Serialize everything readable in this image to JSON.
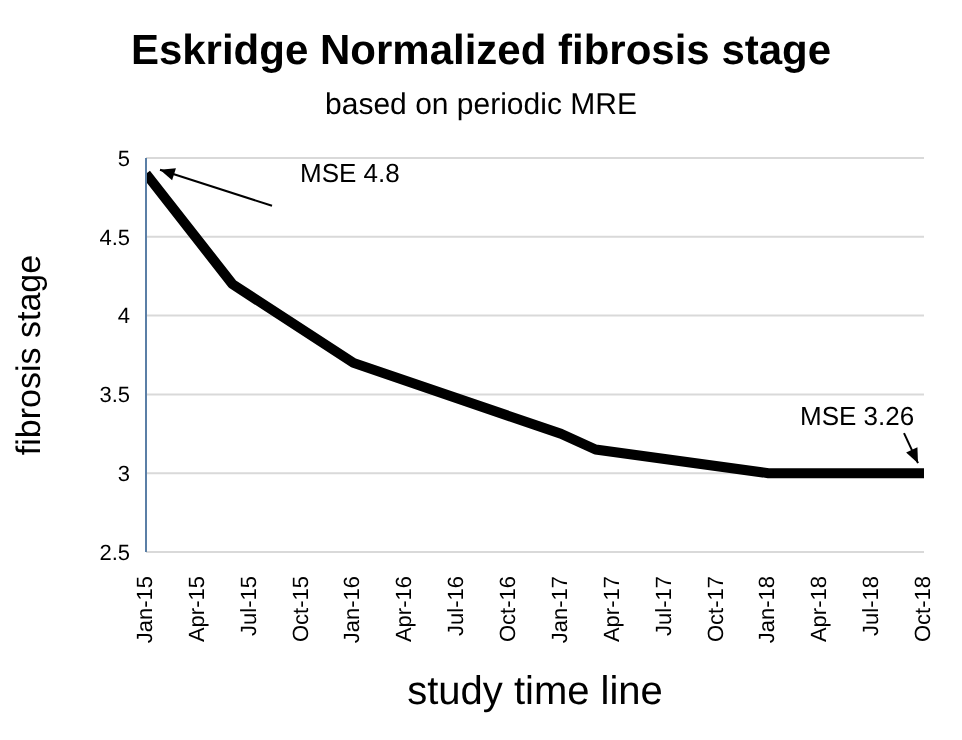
{
  "chart_data": {
    "type": "line",
    "title": "Eskridge Normalized fibrosis stage",
    "subtitle": "based on periodic MRE",
    "xlabel": "study time line",
    "ylabel": "fibrosis stage",
    "x": [
      "2015-01",
      "2015-06",
      "2016-01",
      "2017-01",
      "2017-03",
      "2018-01",
      "2018-10"
    ],
    "series": [
      {
        "color": "#000000",
        "values": [
          4.9,
          4.2,
          3.7,
          3.25,
          3.15,
          3.0,
          3.0
        ]
      }
    ],
    "xlim": [
      "2015-01",
      "2018-10"
    ],
    "xticks": [
      {
        "value": "2015-01",
        "label": "Jan-15"
      },
      {
        "value": "2015-04",
        "label": "Apr-15"
      },
      {
        "value": "2015-07",
        "label": "Jul-15"
      },
      {
        "value": "2015-10",
        "label": "Oct-15"
      },
      {
        "value": "2016-01",
        "label": "Jan-16"
      },
      {
        "value": "2016-04",
        "label": "Apr-16"
      },
      {
        "value": "2016-07",
        "label": "Jul-16"
      },
      {
        "value": "2016-10",
        "label": "Oct-16"
      },
      {
        "value": "2017-01",
        "label": "Jan-17"
      },
      {
        "value": "2017-04",
        "label": "Apr-17"
      },
      {
        "value": "2017-07",
        "label": "Jul-17"
      },
      {
        "value": "2017-10",
        "label": "Oct-17"
      },
      {
        "value": "2018-01",
        "label": "Jan-18"
      },
      {
        "value": "2018-04",
        "label": "Apr-18"
      },
      {
        "value": "2018-07",
        "label": "Jul-18"
      },
      {
        "value": "2018-10",
        "label": "Oct-18"
      }
    ],
    "ylim": [
      2.5,
      5
    ],
    "yticks": [
      2.5,
      3,
      3.5,
      4,
      4.5,
      5
    ],
    "annotations": [
      {
        "text": "MSE 4.8",
        "x": "2015-01",
        "y": 4.9
      },
      {
        "text": "MSE 3.26",
        "x": "2018-10",
        "y": 3.0
      }
    ],
    "grid": "y",
    "legend": false,
    "marker": "none",
    "line_style": "solid"
  }
}
